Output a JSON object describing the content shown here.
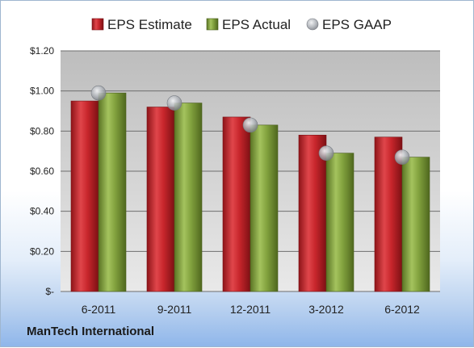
{
  "company": "ManTech International",
  "chart_data": {
    "type": "bar",
    "title": "",
    "xlabel": "",
    "ylabel": "",
    "categories": [
      "6-2011",
      "9-2011",
      "12-2011",
      "3-2012",
      "6-2012"
    ],
    "series": [
      {
        "name": "EPS Estimate",
        "kind": "bar",
        "color": "#c0272d",
        "values": [
          0.95,
          0.92,
          0.87,
          0.78,
          0.77
        ]
      },
      {
        "name": "EPS Actual",
        "kind": "bar",
        "color": "#7a9a3a",
        "values": [
          0.99,
          0.94,
          0.83,
          0.69,
          0.67
        ]
      },
      {
        "name": "EPS GAAP",
        "kind": "scatter",
        "color": "#a9adb3",
        "values": [
          0.99,
          0.94,
          0.83,
          0.69,
          0.67
        ]
      }
    ],
    "ylim": [
      0,
      1.2
    ],
    "yticks": [
      0,
      0.2,
      0.4,
      0.6,
      0.8,
      1.0,
      1.2
    ],
    "ytick_labels": [
      "$-",
      "$0.20",
      "$0.40",
      "$0.60",
      "$0.80",
      "$1.00",
      "$1.20"
    ],
    "grid": true,
    "legend_position": "top"
  }
}
